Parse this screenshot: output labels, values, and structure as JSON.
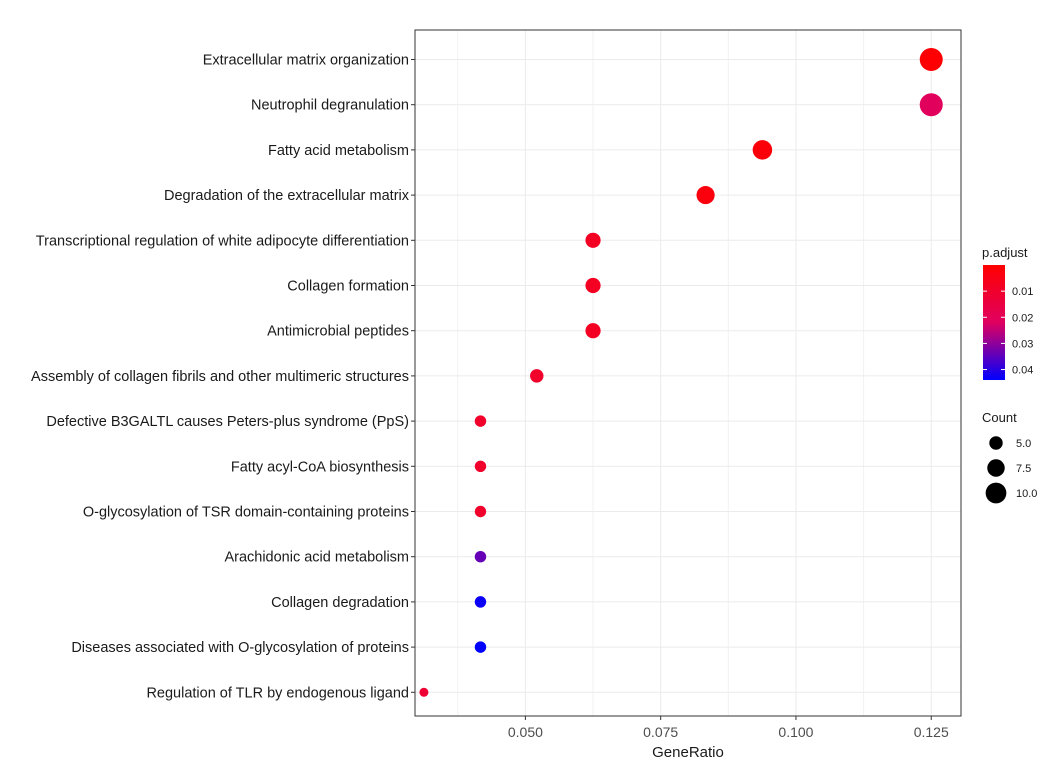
{
  "chart_data": {
    "type": "scatter",
    "xlabel": "GeneRatio",
    "ylabel": "",
    "xlim": [
      0.0296,
      0.1305
    ],
    "x_ticks": [
      0.05,
      0.075,
      0.1,
      0.125
    ],
    "x_tick_labels": [
      "0.050",
      "0.075",
      "0.100",
      "0.125"
    ],
    "grid": true,
    "categories": [
      "Extracellular matrix organization",
      "Neutrophil degranulation",
      "Fatty acid metabolism",
      "Degradation of the extracellular matrix",
      "Transcriptional regulation of white adipocyte differentiation",
      "Collagen formation",
      "Antimicrobial peptides",
      "Assembly of collagen fibrils and other multimeric structures",
      "Defective B3GALTL causes Peters-plus syndrome (PpS)",
      "Fatty acyl-CoA biosynthesis",
      "O-glycosylation of TSR domain-containing proteins",
      "Arachidonic acid metabolism",
      "Collagen degradation",
      "Diseases associated with O-glycosylation of proteins",
      "Regulation of TLR by endogenous ligand"
    ],
    "points": [
      {
        "term": "Extracellular matrix organization",
        "gene_ratio": 0.125,
        "count": 12,
        "p_adjust": 0.001
      },
      {
        "term": "Neutrophil degranulation",
        "gene_ratio": 0.125,
        "count": 12,
        "p_adjust": 0.021
      },
      {
        "term": "Fatty acid metabolism",
        "gene_ratio": 0.0938,
        "count": 9,
        "p_adjust": 0.002
      },
      {
        "term": "Degradation of the extracellular matrix",
        "gene_ratio": 0.0833,
        "count": 8,
        "p_adjust": 0.003
      },
      {
        "term": "Transcriptional regulation of white adipocyte differentiation",
        "gene_ratio": 0.0625,
        "count": 6,
        "p_adjust": 0.008
      },
      {
        "term": "Collagen formation",
        "gene_ratio": 0.0625,
        "count": 6,
        "p_adjust": 0.008
      },
      {
        "term": "Antimicrobial peptides",
        "gene_ratio": 0.0625,
        "count": 6,
        "p_adjust": 0.008
      },
      {
        "term": "Assembly of collagen fibrils and other multimeric structures",
        "gene_ratio": 0.0521,
        "count": 5,
        "p_adjust": 0.01
      },
      {
        "term": "Defective B3GALTL causes Peters-plus syndrome (PpS)",
        "gene_ratio": 0.0417,
        "count": 4,
        "p_adjust": 0.01
      },
      {
        "term": "Fatty acyl-CoA biosynthesis",
        "gene_ratio": 0.0417,
        "count": 4,
        "p_adjust": 0.01
      },
      {
        "term": "O-glycosylation of TSR domain-containing proteins",
        "gene_ratio": 0.0417,
        "count": 4,
        "p_adjust": 0.01
      },
      {
        "term": "Arachidonic acid metabolism",
        "gene_ratio": 0.0417,
        "count": 4,
        "p_adjust": 0.034
      },
      {
        "term": "Collagen degradation",
        "gene_ratio": 0.0417,
        "count": 4,
        "p_adjust": 0.043
      },
      {
        "term": "Diseases associated with O-glycosylation of proteins",
        "gene_ratio": 0.0417,
        "count": 4,
        "p_adjust": 0.044
      },
      {
        "term": "Regulation of TLR by endogenous ligand",
        "gene_ratio": 0.03125,
        "count": 3,
        "p_adjust": 0.012
      }
    ],
    "color_legend": {
      "title": "p.adjust",
      "range": [
        0.0,
        0.044
      ],
      "ticks": [
        0.01,
        0.02,
        0.03,
        0.04
      ],
      "tick_labels": [
        "0.01",
        "0.02",
        "0.03",
        "0.04"
      ],
      "low_color": "#ff0000",
      "high_color": "#0000ff"
    },
    "size_legend": {
      "title": "Count",
      "values": [
        5.0,
        7.5,
        10.0
      ],
      "labels": [
        "5.0",
        "7.5",
        "10.0"
      ],
      "range": [
        3,
        12
      ]
    },
    "legend_position": "right"
  }
}
